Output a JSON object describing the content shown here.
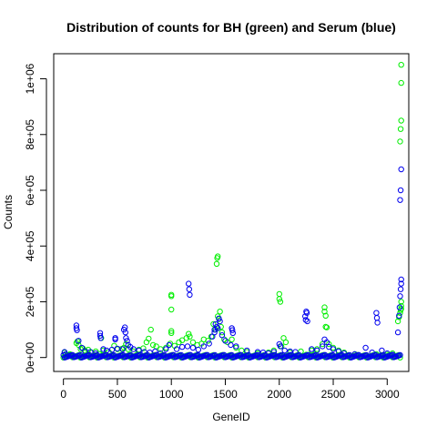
{
  "chart_data": {
    "type": "scatter",
    "title": "Distribution of counts for BH (green) and Serum (blue)",
    "xlabel": "GeneID",
    "ylabel": "Counts",
    "xlim": [
      -90,
      3200
    ],
    "ylim": [
      -50000,
      1090000
    ],
    "x_ticks": [
      0,
      500,
      1000,
      1500,
      2000,
      2500,
      3000
    ],
    "x_tick_labels": [
      "0",
      "500",
      "1000",
      "1500",
      "2000",
      "2500",
      "3000"
    ],
    "y_ticks": [
      0,
      200000,
      400000,
      600000,
      800000,
      1000000
    ],
    "y_tick_labels": [
      "0e+00",
      "2e+05",
      "4e+05",
      "6e+05",
      "8e+05",
      "1e+06"
    ],
    "grid": false,
    "legend": "none",
    "series": [
      {
        "color": "#00ee00",
        "points": [
          [
            10,
            18000
          ],
          [
            15,
            9000
          ],
          [
            40,
            5000
          ],
          [
            60,
            12000
          ],
          [
            80,
            7000
          ],
          [
            120,
            52000
          ],
          [
            130,
            58000
          ],
          [
            140,
            45000
          ],
          [
            160,
            30000
          ],
          [
            180,
            33000
          ],
          [
            200,
            25000
          ],
          [
            230,
            28000
          ],
          [
            260,
            18000
          ],
          [
            300,
            22000
          ],
          [
            330,
            13000
          ],
          [
            350,
            70000
          ],
          [
            370,
            25000
          ],
          [
            420,
            20000
          ],
          [
            470,
            42000
          ],
          [
            500,
            30000
          ],
          [
            540,
            31000
          ],
          [
            560,
            35000
          ],
          [
            580,
            48000
          ],
          [
            600,
            30000
          ],
          [
            650,
            22000
          ],
          [
            700,
            28000
          ],
          [
            740,
            33000
          ],
          [
            770,
            55000
          ],
          [
            790,
            68000
          ],
          [
            810,
            100000
          ],
          [
            830,
            45000
          ],
          [
            860,
            40000
          ],
          [
            900,
            30000
          ],
          [
            950,
            35000
          ],
          [
            990,
            50000
          ],
          [
            1000,
            220000
          ],
          [
            1000,
            225000
          ],
          [
            1000,
            172000
          ],
          [
            1000,
            95000
          ],
          [
            1000,
            88000
          ],
          [
            1030,
            42000
          ],
          [
            1070,
            55000
          ],
          [
            1100,
            62000
          ],
          [
            1140,
            70000
          ],
          [
            1160,
            85000
          ],
          [
            1170,
            75000
          ],
          [
            1200,
            55000
          ],
          [
            1240,
            45000
          ],
          [
            1280,
            50000
          ],
          [
            1300,
            65000
          ],
          [
            1340,
            60000
          ],
          [
            1370,
            75000
          ],
          [
            1390,
            120000
          ],
          [
            1410,
            100000
          ],
          [
            1420,
            336000
          ],
          [
            1425,
            357000
          ],
          [
            1430,
            363000
          ],
          [
            1430,
            148000
          ],
          [
            1440,
            138000
          ],
          [
            1450,
            165000
          ],
          [
            1460,
            110000
          ],
          [
            1470,
            90000
          ],
          [
            1490,
            65000
          ],
          [
            1520,
            55000
          ],
          [
            1560,
            65000
          ],
          [
            1600,
            35000
          ],
          [
            1650,
            25000
          ],
          [
            1700,
            20000
          ],
          [
            1800,
            15000
          ],
          [
            1900,
            18000
          ],
          [
            1950,
            25000
          ],
          [
            2000,
            228000
          ],
          [
            2000,
            210000
          ],
          [
            2010,
            200000
          ],
          [
            2020,
            40000
          ],
          [
            2040,
            70000
          ],
          [
            2060,
            55000
          ],
          [
            2100,
            18000
          ],
          [
            2200,
            22000
          ],
          [
            2250,
            10000
          ],
          [
            2300,
            25000
          ],
          [
            2350,
            30000
          ],
          [
            2400,
            48000
          ],
          [
            2420,
            180000
          ],
          [
            2420,
            165000
          ],
          [
            2430,
            150000
          ],
          [
            2430,
            110000
          ],
          [
            2440,
            108000
          ],
          [
            2460,
            48000
          ],
          [
            2500,
            35000
          ],
          [
            2550,
            25000
          ],
          [
            2600,
            18000
          ],
          [
            2700,
            12000
          ],
          [
            2800,
            8000
          ],
          [
            2900,
            12000
          ],
          [
            3000,
            10000
          ],
          [
            3050,
            15000
          ],
          [
            3100,
            130000
          ],
          [
            3110,
            145000
          ],
          [
            3120,
            160000
          ],
          [
            3125,
            170000
          ],
          [
            3130,
            200000
          ],
          [
            3130,
            185000
          ],
          [
            3130,
            175000
          ],
          [
            3120,
            775000
          ],
          [
            3125,
            820000
          ],
          [
            3130,
            850000
          ],
          [
            3130,
            985000
          ],
          [
            3130,
            1050000
          ]
        ]
      },
      {
        "color": "#0000ee",
        "points": [
          [
            10,
            20000
          ],
          [
            20,
            12000
          ],
          [
            50,
            8000
          ],
          [
            90,
            6000
          ],
          [
            120,
            115000
          ],
          [
            120,
            105000
          ],
          [
            125,
            98000
          ],
          [
            140,
            60000
          ],
          [
            170,
            35000
          ],
          [
            200,
            22000
          ],
          [
            250,
            20000
          ],
          [
            300,
            15000
          ],
          [
            340,
            88000
          ],
          [
            340,
            78000
          ],
          [
            345,
            70000
          ],
          [
            370,
            30000
          ],
          [
            400,
            25000
          ],
          [
            450,
            28000
          ],
          [
            480,
            70000
          ],
          [
            480,
            65000
          ],
          [
            500,
            32000
          ],
          [
            550,
            30000
          ],
          [
            560,
            100000
          ],
          [
            570,
            108000
          ],
          [
            575,
            90000
          ],
          [
            580,
            70000
          ],
          [
            590,
            60000
          ],
          [
            600,
            45000
          ],
          [
            620,
            38000
          ],
          [
            650,
            30000
          ],
          [
            700,
            25000
          ],
          [
            750,
            20000
          ],
          [
            800,
            18000
          ],
          [
            850,
            22000
          ],
          [
            900,
            15000
          ],
          [
            950,
            30000
          ],
          [
            980,
            45000
          ],
          [
            1050,
            30000
          ],
          [
            1100,
            38000
          ],
          [
            1150,
            40000
          ],
          [
            1160,
            265000
          ],
          [
            1165,
            245000
          ],
          [
            1170,
            225000
          ],
          [
            1200,
            35000
          ],
          [
            1250,
            28000
          ],
          [
            1300,
            40000
          ],
          [
            1350,
            50000
          ],
          [
            1380,
            75000
          ],
          [
            1400,
            100000
          ],
          [
            1400,
            90000
          ],
          [
            1410,
            120000
          ],
          [
            1420,
            110000
          ],
          [
            1430,
            105000
          ],
          [
            1440,
            140000
          ],
          [
            1450,
            130000
          ],
          [
            1470,
            80000
          ],
          [
            1500,
            60000
          ],
          [
            1550,
            45000
          ],
          [
            1560,
            105000
          ],
          [
            1565,
            98000
          ],
          [
            1570,
            88000
          ],
          [
            1600,
            40000
          ],
          [
            1700,
            25000
          ],
          [
            1800,
            20000
          ],
          [
            1850,
            18000
          ],
          [
            1900,
            15000
          ],
          [
            1950,
            20000
          ],
          [
            2000,
            48000
          ],
          [
            2010,
            40000
          ],
          [
            2050,
            25000
          ],
          [
            2100,
            22000
          ],
          [
            2150,
            20000
          ],
          [
            2240,
            148000
          ],
          [
            2245,
            135000
          ],
          [
            2250,
            165000
          ],
          [
            2255,
            160000
          ],
          [
            2260,
            130000
          ],
          [
            2300,
            30000
          ],
          [
            2350,
            25000
          ],
          [
            2400,
            40000
          ],
          [
            2420,
            65000
          ],
          [
            2440,
            55000
          ],
          [
            2460,
            38000
          ],
          [
            2500,
            30000
          ],
          [
            2550,
            22000
          ],
          [
            2600,
            15000
          ],
          [
            2700,
            12000
          ],
          [
            2800,
            35000
          ],
          [
            2860,
            18000
          ],
          [
            2900,
            160000
          ],
          [
            2905,
            142000
          ],
          [
            2910,
            125000
          ],
          [
            2950,
            25000
          ],
          [
            3000,
            15000
          ],
          [
            3050,
            10000
          ],
          [
            3100,
            90000
          ],
          [
            3110,
            150000
          ],
          [
            3115,
            180000
          ],
          [
            3120,
            220000
          ],
          [
            3125,
            245000
          ],
          [
            3130,
            265000
          ],
          [
            3130,
            280000
          ],
          [
            3120,
            565000
          ],
          [
            3125,
            600000
          ],
          [
            3130,
            675000
          ]
        ]
      }
    ]
  }
}
